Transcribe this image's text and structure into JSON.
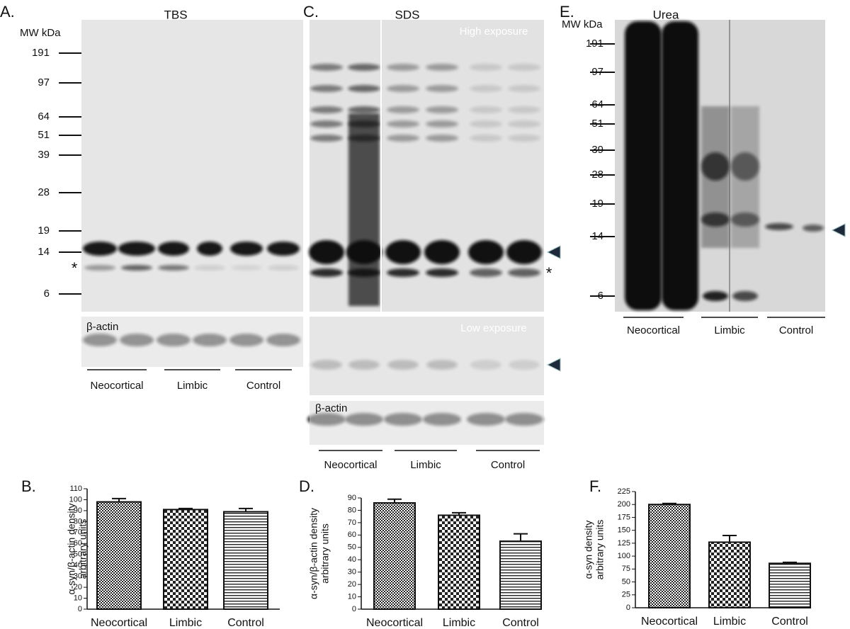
{
  "blots": [
    {
      "panel": "A.",
      "title": "TBS",
      "mw_title": "MW kDa",
      "mw": [
        191,
        97,
        64,
        51,
        39,
        28,
        19,
        14,
        6
      ],
      "star": "*",
      "actin": "β-actin",
      "groups": [
        "Neocortical",
        "Limbic",
        "Control"
      ]
    },
    {
      "panel": "C.",
      "title": "SDS",
      "high": "High exposure",
      "low": "Low exposure",
      "star": "*",
      "actin": "β-actin",
      "groups": [
        "Neocortical",
        "Limbic",
        "Control"
      ]
    },
    {
      "panel": "E.",
      "title": "Urea",
      "mw_title": "MW kDa",
      "mw": [
        191,
        97,
        64,
        51,
        39,
        28,
        19,
        14,
        6
      ],
      "groups": [
        "Neocortical",
        "Limbic",
        "Control"
      ]
    }
  ],
  "chart_data": [
    {
      "type": "bar",
      "panel_label": "B.",
      "y_label": [
        "α-syn/β-actin density",
        "arbitrary units"
      ],
      "categories": [
        "Neocortical",
        "Limbic",
        "Control"
      ],
      "values": [
        98,
        91,
        89
      ],
      "errors": [
        3,
        1,
        3
      ],
      "ylim": [
        0,
        110
      ],
      "yticks": [
        0,
        10,
        20,
        30,
        40,
        50,
        60,
        70,
        80,
        90,
        100,
        110
      ],
      "patterns": [
        "checker-fine",
        "checker-coarse",
        "hlines"
      ]
    },
    {
      "type": "bar",
      "panel_label": "D.",
      "y_label": [
        "α-syn/β-actin density",
        "arbitrary units"
      ],
      "categories": [
        "Neocortical",
        "Limbic",
        "Control"
      ],
      "values": [
        86,
        76,
        55
      ],
      "errors": [
        3,
        2,
        6
      ],
      "ylim": [
        0,
        90
      ],
      "yticks": [
        0,
        10,
        20,
        30,
        40,
        50,
        60,
        70,
        80,
        90
      ],
      "patterns": [
        "checker-fine",
        "checker-coarse",
        "hlines"
      ]
    },
    {
      "type": "bar",
      "panel_label": "F.",
      "y_label": [
        "α-syn density",
        "arbitrary units"
      ],
      "categories": [
        "Neocortical",
        "Limbic",
        "Control"
      ],
      "values": [
        200,
        127,
        86
      ],
      "errors": [
        2,
        13,
        2
      ],
      "ylim": [
        0,
        225
      ],
      "yticks": [
        0,
        25,
        50,
        75,
        100,
        125,
        150,
        175,
        200,
        225
      ],
      "patterns": [
        "checker-fine",
        "checker-coarse",
        "hlines"
      ]
    }
  ]
}
